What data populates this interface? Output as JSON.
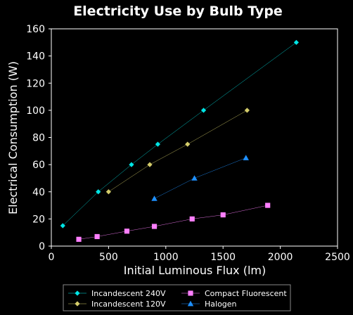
{
  "chart_data": {
    "type": "scatter",
    "title": "Electricity Use by Bulb Type",
    "xlabel": "Initial Luminous Flux (lm)",
    "ylabel": "Electrical Consumption (W)",
    "xlim": [
      0,
      2500
    ],
    "ylim": [
      0,
      160
    ],
    "xticks": [
      0,
      500,
      1000,
      1500,
      2000,
      2500
    ],
    "yticks": [
      0,
      20,
      40,
      60,
      80,
      100,
      120,
      140,
      160
    ],
    "grid": false,
    "legend_position": "bottom",
    "background": "#000000",
    "series": [
      {
        "name": "Incandescent 240V",
        "color": "#00e5e5",
        "marker": "diamond",
        "x": [
          100,
          410,
          700,
          930,
          1330,
          2140
        ],
        "y": [
          15,
          40,
          60,
          75,
          100,
          150
        ]
      },
      {
        "name": "Incandescent 120V",
        "color": "#d4cc6a",
        "marker": "diamond",
        "x": [
          500,
          860,
          1190,
          1710
        ],
        "y": [
          40,
          60,
          75,
          100
        ]
      },
      {
        "name": "Compact Fluorescent",
        "color": "#ff7fff",
        "marker": "square",
        "x": [
          240,
          400,
          660,
          900,
          1230,
          1500,
          1890
        ],
        "y": [
          5,
          7,
          11,
          14.5,
          20,
          23,
          30
        ]
      },
      {
        "name": "Halogen",
        "color": "#1e90ff",
        "marker": "triangle",
        "x": [
          900,
          1250,
          1700
        ],
        "y": [
          35,
          50,
          65
        ]
      }
    ]
  }
}
